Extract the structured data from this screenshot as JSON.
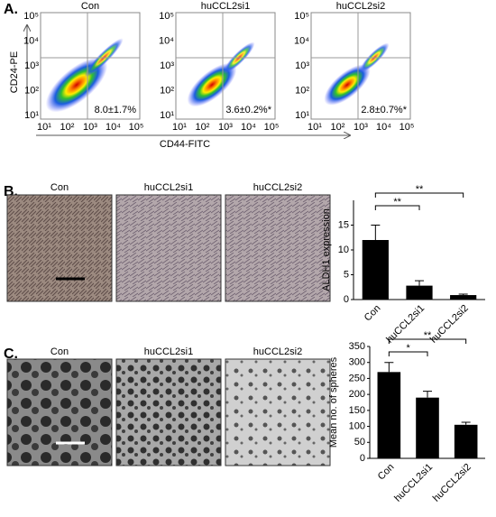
{
  "panel_a": {
    "label": "A.",
    "x_label": "CD44-FITC",
    "y_label": "CD24-PE",
    "ticks": [
      "10¹",
      "10²",
      "10³",
      "10⁴",
      "10⁵"
    ],
    "plots": [
      {
        "title": "Con",
        "stat": "8.0±1.7%"
      },
      {
        "title": "huCCL2si1",
        "stat": "3.6±0.2%*"
      },
      {
        "title": "huCCL2si2",
        "stat": "2.8±0.7%*"
      }
    ]
  },
  "panel_b": {
    "label": "B.",
    "images": [
      "Con",
      "huCCL2si1",
      "huCCL2si2"
    ]
  },
  "panel_c": {
    "label": "C.",
    "images": [
      "Con",
      "huCCL2si1",
      "huCCL2si2"
    ]
  },
  "chart_data": [
    {
      "type": "bar",
      "y_label": "ALDH1 expression",
      "categories": [
        "Con",
        "huCCL2si1",
        "huCCL2si2"
      ],
      "values": [
        12,
        2.8,
        0.9
      ],
      "errors": [
        3,
        1,
        0.2
      ],
      "color": "#000000",
      "ylim": [
        0,
        20
      ],
      "yticks": [
        0,
        5,
        10,
        15
      ],
      "annotations": [
        "**",
        "**"
      ]
    },
    {
      "type": "bar",
      "y_label": "Mean no. of spheres",
      "categories": [
        "Con",
        "huCCL2si1",
        "huCCL2si2"
      ],
      "values": [
        270,
        190,
        105
      ],
      "errors": [
        30,
        20,
        8
      ],
      "color": "#000000",
      "ylim": [
        0,
        350
      ],
      "yticks": [
        0,
        50,
        100,
        150,
        200,
        250,
        300,
        350
      ],
      "annotations": [
        "*",
        "**"
      ]
    }
  ]
}
